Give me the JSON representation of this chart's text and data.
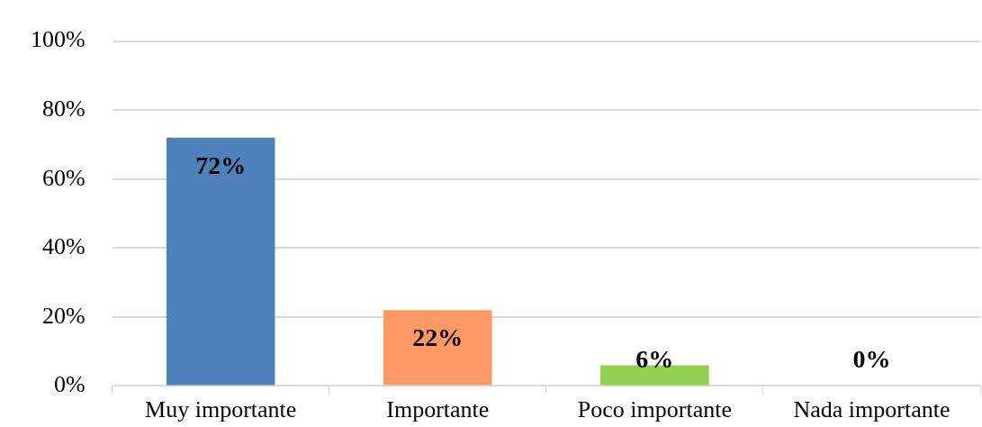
{
  "chart_data": {
    "type": "bar",
    "categories": [
      "Muy importante",
      "Importante",
      "Poco importante",
      "Nada importante"
    ],
    "values": [
      72,
      22,
      6,
      0
    ],
    "colors": [
      "#4f81bd",
      "#ff9966",
      "#92d050",
      "#92d050"
    ],
    "value_labels": [
      "72%",
      "22%",
      "6%",
      "0%"
    ],
    "ylim": [
      0,
      100
    ],
    "yticks": [
      {
        "value": 0,
        "label": "0%"
      },
      {
        "value": 20,
        "label": "20%"
      },
      {
        "value": 40,
        "label": "40%"
      },
      {
        "value": 60,
        "label": "60%"
      },
      {
        "value": 80,
        "label": "80%"
      },
      {
        "value": 100,
        "label": "100%"
      }
    ],
    "grid": "y",
    "legend": false
  }
}
